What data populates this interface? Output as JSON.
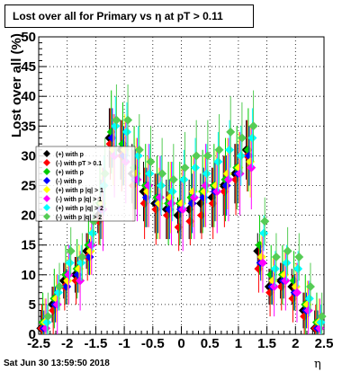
{
  "chart_data": {
    "type": "scatter",
    "title": "Lost over all for Primary vs   η at pT > 0.11",
    "xlabel": "η",
    "ylabel": "Lost over all (%)",
    "xlim": [
      -2.5,
      2.5
    ],
    "ylim": [
      0,
      50
    ],
    "x_ticks": [
      "-2.5",
      "-2",
      "-1.5",
      "-1",
      "-0.5",
      "0",
      "0.5",
      "1",
      "1.5",
      "2",
      "2.5"
    ],
    "y_ticks": [
      "0",
      "5",
      "10",
      "15",
      "20",
      "25",
      "30",
      "35",
      "40",
      "45",
      "50"
    ],
    "grid": true,
    "legend_position": "left-middle",
    "legend": [
      "(+) with p",
      "(-) with pT > 0.1",
      "(+) with p",
      "(-) with p",
      "(+) with p  |q| > 1",
      "(-) with p  |q| > 1",
      "(+) with p  |q| > 2",
      "(-) with p  |q| > 2"
    ],
    "series": [
      {
        "name": "(+) with p",
        "color": "#000000",
        "x": [
          -2.4,
          -2.2,
          -2.0,
          -1.8,
          -1.6,
          -1.4,
          -1.2,
          -1.0,
          -0.8,
          -0.6,
          -0.4,
          -0.2,
          0.0,
          0.2,
          0.4,
          0.6,
          0.8,
          1.0,
          1.2,
          1.4,
          1.6,
          1.8,
          2.0,
          2.2,
          2.4
        ],
        "y": [
          1,
          5,
          9,
          10,
          14,
          20,
          33,
          31,
          27,
          24,
          22,
          21,
          20,
          21,
          22,
          23,
          25,
          27,
          31,
          14,
          8,
          9,
          8,
          4,
          1
        ]
      },
      {
        "name": "(-) with pT > 0.1",
        "color": "#ff0000",
        "x": [
          -2.4,
          -2.2,
          -2.0,
          -1.8,
          -1.6,
          -1.4,
          -1.2,
          -1.0,
          -0.8,
          -0.6,
          -0.4,
          -0.2,
          0.0,
          0.2,
          0.4,
          0.6,
          0.8,
          1.0,
          1.2,
          1.4,
          1.6,
          1.8,
          2.0,
          2.2,
          2.4
        ],
        "y": [
          1,
          4,
          8,
          9,
          13,
          19,
          32,
          30,
          25,
          22,
          21,
          20,
          18,
          19,
          20,
          22,
          24,
          26,
          30,
          11,
          7,
          8,
          6,
          3,
          1
        ]
      },
      {
        "name": "(+) with p",
        "color": "#00cc00",
        "x": [
          -2.4,
          -2.2,
          -2.0,
          -1.8,
          -1.6,
          -1.4,
          -1.2,
          -1.0,
          -0.8,
          -0.6,
          -0.4,
          -0.2,
          0.0,
          0.2,
          0.4,
          0.6,
          0.8,
          1.0,
          1.2,
          1.4,
          1.6,
          1.8,
          2.0,
          2.2,
          2.4
        ],
        "y": [
          2,
          6,
          10,
          11,
          15,
          22,
          34,
          32,
          28,
          25,
          23,
          22,
          22,
          23,
          24,
          25,
          26,
          28,
          31,
          15,
          10,
          10,
          9,
          5,
          2
        ]
      },
      {
        "name": "(-) with p",
        "color": "#0000ff",
        "x": [
          -2.4,
          -2.2,
          -2.0,
          -1.8,
          -1.6,
          -1.4,
          -1.2,
          -1.0,
          -0.8,
          -0.6,
          -0.4,
          -0.2,
          0.0,
          0.2,
          0.4,
          0.6,
          0.8,
          1.0,
          1.2,
          1.4,
          1.6,
          1.8,
          2.0,
          2.2,
          2.4
        ],
        "y": [
          1,
          5,
          8,
          10,
          13,
          21,
          33,
          30,
          26,
          23,
          22,
          21,
          21,
          22,
          23,
          24,
          25,
          27,
          30,
          12,
          8,
          9,
          7,
          4,
          1
        ]
      },
      {
        "name": "(+) with p  |q| > 1",
        "color": "#ffff00",
        "x": [
          -2.4,
          -2.2,
          -2.0,
          -1.8,
          -1.6,
          -1.4,
          -1.2,
          -1.0,
          -0.8,
          -0.6,
          -0.4,
          -0.2,
          0.0,
          0.2,
          0.4,
          0.6,
          0.8,
          1.0,
          1.2,
          1.4,
          1.6,
          1.8,
          2.0,
          2.2,
          2.4
        ],
        "y": [
          2,
          6,
          9,
          11,
          14,
          22,
          31,
          31,
          27,
          24,
          22,
          23,
          22,
          24,
          24,
          25,
          27,
          28,
          29,
          13,
          9,
          10,
          8,
          5,
          2
        ]
      },
      {
        "name": "(-) with p  |q| > 1",
        "color": "#ff00ff",
        "x": [
          -2.4,
          -2.2,
          -2.0,
          -1.8,
          -1.6,
          -1.4,
          -1.2,
          -1.0,
          -0.8,
          -0.6,
          -0.4,
          -0.2,
          0.0,
          0.2,
          0.4,
          0.6,
          0.8,
          1.0,
          1.2,
          1.4,
          1.6,
          1.8,
          2.0,
          2.2,
          2.4
        ],
        "y": [
          1,
          5,
          10,
          9,
          15,
          21,
          30,
          29,
          26,
          25,
          23,
          22,
          21,
          23,
          25,
          24,
          26,
          27,
          28,
          12,
          8,
          9,
          7,
          4,
          1
        ]
      },
      {
        "name": "(+) with p  |q| > 2",
        "color": "#00ffff",
        "x": [
          -2.4,
          -2.2,
          -2.0,
          -1.8,
          -1.6,
          -1.4,
          -1.2,
          -1.0,
          -0.8,
          -0.6,
          -0.4,
          -0.2,
          0.0,
          0.2,
          0.4,
          0.6,
          0.8,
          1.0,
          1.2,
          1.4,
          1.6,
          1.8,
          2.0,
          2.2,
          2.4
        ],
        "y": [
          2,
          7,
          12,
          12,
          17,
          25,
          35,
          34,
          30,
          27,
          25,
          24,
          26,
          28,
          27,
          29,
          31,
          30,
          33,
          17,
          11,
          12,
          11,
          6,
          2
        ]
      },
      {
        "name": "(-) with p  |q| > 2",
        "color": "#55cc55",
        "x": [
          -2.4,
          -2.2,
          -2.0,
          -1.8,
          -1.6,
          -1.4,
          -1.2,
          -1.0,
          -0.8,
          -0.6,
          -0.4,
          -0.2,
          0.0,
          0.2,
          0.4,
          0.6,
          0.8,
          1.0,
          1.2,
          1.4,
          1.6,
          1.8,
          2.0,
          2.2,
          2.4
        ],
        "y": [
          3,
          8,
          14,
          13,
          19,
          27,
          36,
          36,
          31,
          29,
          27,
          26,
          28,
          30,
          30,
          31,
          34,
          33,
          35,
          19,
          13,
          14,
          13,
          8,
          3
        ]
      }
    ]
  },
  "footer": "Sat Jun 30 13:59:50 2018"
}
